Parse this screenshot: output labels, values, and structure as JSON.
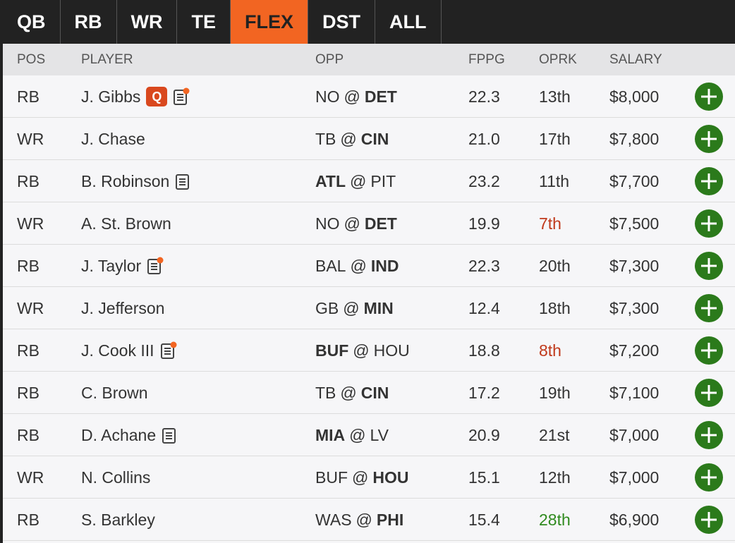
{
  "tabs": [
    {
      "label": "QB",
      "active": false
    },
    {
      "label": "RB",
      "active": false
    },
    {
      "label": "WR",
      "active": false
    },
    {
      "label": "TE",
      "active": false
    },
    {
      "label": "FLEX",
      "active": true
    },
    {
      "label": "DST",
      "active": false
    },
    {
      "label": "ALL",
      "active": false
    }
  ],
  "table": {
    "headers": [
      "POS",
      "PLAYER",
      "OPP",
      "FPPG",
      "OPRK",
      "SALARY"
    ],
    "separator": "@",
    "rows": [
      {
        "pos": "RB",
        "player": "J. Gibbs",
        "status": "Q",
        "note": true,
        "news": true,
        "away": "NO",
        "home": "DET",
        "bold": "home",
        "fppg": "22.3",
        "oprk": "13th",
        "salary": "$8,000"
      },
      {
        "pos": "WR",
        "player": "J. Chase",
        "note": false,
        "news": false,
        "away": "TB",
        "home": "CIN",
        "bold": "home",
        "fppg": "21.0",
        "oprk": "17th",
        "salary": "$7,800"
      },
      {
        "pos": "RB",
        "player": "B. Robinson",
        "note": true,
        "news": false,
        "away": "ATL",
        "home": "PIT",
        "bold": "away",
        "fppg": "23.2",
        "oprk": "11th",
        "salary": "$7,700"
      },
      {
        "pos": "WR",
        "player": "A. St. Brown",
        "note": false,
        "news": false,
        "away": "NO",
        "home": "DET",
        "bold": "home",
        "fppg": "19.9",
        "oprk": "7th",
        "oprk_color": "#c0391b",
        "salary": "$7,500"
      },
      {
        "pos": "RB",
        "player": "J. Taylor",
        "note": true,
        "news": true,
        "away": "BAL",
        "home": "IND",
        "bold": "home",
        "fppg": "22.3",
        "oprk": "20th",
        "salary": "$7,300"
      },
      {
        "pos": "WR",
        "player": "J. Jefferson",
        "note": false,
        "news": false,
        "away": "GB",
        "home": "MIN",
        "bold": "home",
        "fppg": "12.4",
        "oprk": "18th",
        "salary": "$7,300"
      },
      {
        "pos": "RB",
        "player": "J. Cook III",
        "note": true,
        "news": true,
        "away": "BUF",
        "home": "HOU",
        "bold": "away",
        "fppg": "18.8",
        "oprk": "8th",
        "oprk_color": "#c0391b",
        "salary": "$7,200"
      },
      {
        "pos": "RB",
        "player": "C. Brown",
        "note": false,
        "news": false,
        "away": "TB",
        "home": "CIN",
        "bold": "home",
        "fppg": "17.2",
        "oprk": "19th",
        "salary": "$7,100"
      },
      {
        "pos": "RB",
        "player": "D. Achane",
        "note": true,
        "news": false,
        "away": "MIA",
        "home": "LV",
        "bold": "away",
        "fppg": "20.9",
        "oprk": "21st",
        "salary": "$7,000"
      },
      {
        "pos": "WR",
        "player": "N. Collins",
        "note": false,
        "news": false,
        "away": "BUF",
        "home": "HOU",
        "bold": "home",
        "fppg": "15.1",
        "oprk": "12th",
        "salary": "$7,000"
      },
      {
        "pos": "RB",
        "player": "S. Barkley",
        "note": false,
        "news": false,
        "away": "WAS",
        "home": "PHI",
        "bold": "home",
        "fppg": "15.4",
        "oprk": "28th",
        "oprk_color": "#2f8a1e",
        "salary": "$6,900"
      }
    ]
  }
}
